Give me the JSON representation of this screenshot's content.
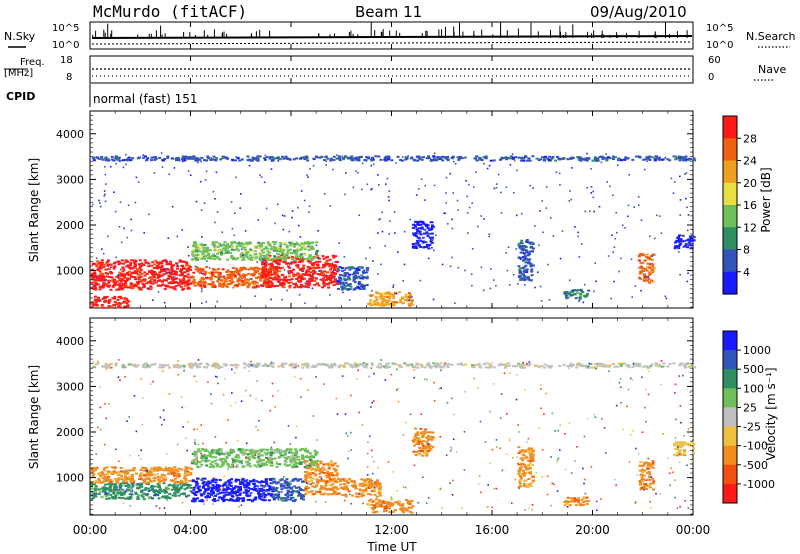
{
  "header": {
    "station": "McMurdo (fitACF)",
    "beam": "Beam 11",
    "date": "09/Aug/2010"
  },
  "top_panels": {
    "nsky_label": "N.Sky",
    "nsky_ticks": [
      "10^5",
      "10^0"
    ],
    "nsearch_label": "N.Search",
    "nsearch_ticks": [
      "10^5",
      "10^0"
    ],
    "freq_label": "Freq.",
    "freq_unit": "[MHz]",
    "freq_ticks": [
      "18",
      "8"
    ],
    "nave_label": "Nave",
    "nave_ticks": [
      "60",
      "0"
    ],
    "cpid_label": "CPID",
    "cpid_value": "normal (fast) 151"
  },
  "chart_data": [
    {
      "type": "heatmap",
      "title": "",
      "ylabel": "Slant Range [km]",
      "xlabel": "",
      "xlim": [
        0,
        24
      ],
      "ylim": [
        180,
        4500
      ],
      "y_ticks": [
        "1000",
        "2000",
        "3000",
        "4000"
      ],
      "x_tick_labels": [
        "00:00",
        "04:00",
        "08:00",
        "12:00",
        "16:00",
        "20:00",
        "00:00"
      ],
      "colorbar": {
        "label": "Power [dB]",
        "ticks": [
          "4",
          "8",
          "12",
          "16",
          "20",
          "24",
          "28"
        ],
        "colors": [
          "#1a1aff",
          "#3355bb",
          "#2f8f60",
          "#6fbf5a",
          "#e8e040",
          "#f0a020",
          "#f06010",
          "#ff1a1a"
        ]
      },
      "regions": [
        {
          "t0": 0.0,
          "t1": 4.0,
          "r0": 600,
          "r1": 1250,
          "level": 7
        },
        {
          "t0": 0.0,
          "t1": 1.5,
          "r0": 200,
          "r1": 450,
          "level": 7
        },
        {
          "t0": 4.0,
          "t1": 7.2,
          "r0": 650,
          "r1": 1100,
          "level": 6
        },
        {
          "t0": 6.8,
          "t1": 9.8,
          "r0": 650,
          "r1": 1350,
          "level": 7
        },
        {
          "t0": 4.0,
          "t1": 9.0,
          "r0": 1250,
          "r1": 1650,
          "level": 3
        },
        {
          "t0": 9.8,
          "t1": 11.0,
          "r0": 600,
          "r1": 1100,
          "level": 1
        },
        {
          "t0": 11.0,
          "t1": 12.8,
          "r0": 250,
          "r1": 550,
          "level": 5
        },
        {
          "t0": 12.8,
          "t1": 13.6,
          "r0": 1500,
          "r1": 2100,
          "level": 0
        },
        {
          "t0": 17.0,
          "t1": 17.6,
          "r0": 800,
          "r1": 1700,
          "level": 1
        },
        {
          "t0": 18.8,
          "t1": 19.8,
          "r0": 400,
          "r1": 600,
          "level": 2
        },
        {
          "t0": 21.8,
          "t1": 22.4,
          "r0": 750,
          "r1": 1400,
          "level": 6
        },
        {
          "t0": 23.2,
          "t1": 24.0,
          "r0": 1500,
          "r1": 1800,
          "level": 0
        },
        {
          "t0": 0.0,
          "t1": 24.0,
          "r0": 3430,
          "r1": 3530,
          "level": 1
        }
      ]
    },
    {
      "type": "heatmap",
      "title": "",
      "ylabel": "Slant Range [km]",
      "xlabel": "Time UT",
      "xlim": [
        0,
        24
      ],
      "ylim": [
        180,
        4500
      ],
      "y_ticks": [
        "1000",
        "2000",
        "3000",
        "4000"
      ],
      "x_tick_labels": [
        "00:00",
        "04:00",
        "08:00",
        "12:00",
        "16:00",
        "20:00",
        "00:00"
      ],
      "colorbar": {
        "label": "Velocity [m s⁻¹]",
        "ticks": [
          "1000",
          "500",
          "100",
          "25",
          "-25",
          "-100",
          "-500",
          "-1000"
        ],
        "colors": [
          "#1a1aff",
          "#3355bb",
          "#2f8f60",
          "#6fbf5a",
          "#c0c0c0",
          "#f0c040",
          "#f08c20",
          "#f05010",
          "#ff1a1a"
        ]
      },
      "regions": [
        {
          "t0": 0.0,
          "t1": 4.0,
          "r0": 550,
          "r1": 900,
          "level": 2
        },
        {
          "t0": 0.0,
          "t1": 4.0,
          "r0": 900,
          "r1": 1250,
          "level": 6
        },
        {
          "t0": 4.0,
          "t1": 7.2,
          "r0": 500,
          "r1": 1000,
          "level": 0
        },
        {
          "t0": 7.2,
          "t1": 8.5,
          "r0": 500,
          "r1": 1000,
          "level": 1
        },
        {
          "t0": 8.5,
          "t1": 9.8,
          "r0": 650,
          "r1": 1400,
          "level": 6
        },
        {
          "t0": 4.0,
          "t1": 9.0,
          "r0": 1250,
          "r1": 1650,
          "level": 3
        },
        {
          "t0": 9.8,
          "t1": 11.5,
          "r0": 600,
          "r1": 1000,
          "level": 6
        },
        {
          "t0": 11.0,
          "t1": 12.8,
          "r0": 250,
          "r1": 550,
          "level": 6
        },
        {
          "t0": 12.8,
          "t1": 13.6,
          "r0": 1500,
          "r1": 2100,
          "level": 6
        },
        {
          "t0": 17.0,
          "t1": 17.6,
          "r0": 800,
          "r1": 1700,
          "level": 6
        },
        {
          "t0": 18.8,
          "t1": 19.8,
          "r0": 400,
          "r1": 600,
          "level": 6
        },
        {
          "t0": 21.8,
          "t1": 22.4,
          "r0": 750,
          "r1": 1400,
          "level": 6
        },
        {
          "t0": 23.2,
          "t1": 24.0,
          "r0": 1500,
          "r1": 1800,
          "level": 5
        },
        {
          "t0": 0.0,
          "t1": 24.0,
          "r0": 3430,
          "r1": 3530,
          "level": 4
        }
      ]
    }
  ]
}
